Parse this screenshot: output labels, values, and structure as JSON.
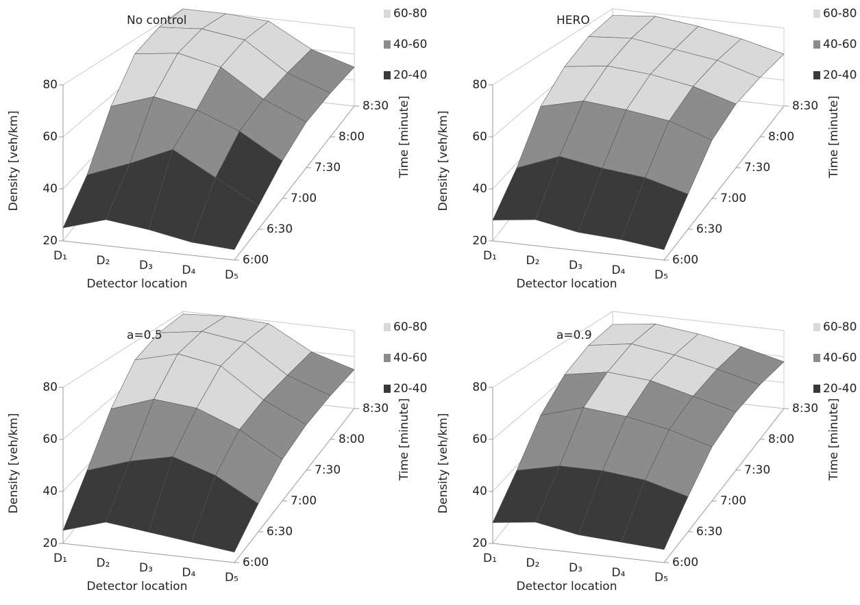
{
  "chart_data": [
    {
      "type": "surface",
      "title": "No control",
      "x_label": "Detector location",
      "y_label": "Time [minute]",
      "z_label": "Density [veh/km]",
      "categories": [
        "D₁",
        "D₂",
        "D₃",
        "D₄",
        "D₅"
      ],
      "times": [
        "6:00",
        "6:30",
        "7:00",
        "7:30",
        "8:00",
        "8:30"
      ],
      "zlim": [
        20,
        80
      ],
      "zticks": [
        20,
        40,
        60,
        80
      ],
      "bands": [
        {
          "label": "60-80",
          "from": 60,
          "to": 80,
          "color": "#d9d9d9"
        },
        {
          "label": "40-60",
          "from": 40,
          "to": 60,
          "color": "#8c8c8c"
        },
        {
          "label": "20-40",
          "from": 20,
          "to": 40,
          "color": "#3a3a3a"
        }
      ],
      "z": [
        [
          25,
          30,
          28,
          25,
          24
        ],
        [
          35,
          42,
          50,
          40,
          30
        ],
        [
          55,
          62,
          58,
          50,
          38
        ],
        [
          72,
          75,
          70,
          55,
          45
        ],
        [
          78,
          80,
          76,
          58,
          48
        ],
        [
          80,
          80,
          78,
          60,
          50
        ]
      ]
    },
    {
      "type": "surface",
      "title": "HERO",
      "x_label": "Detector location",
      "y_label": "Time [minute]",
      "z_label": "Density [veh/km]",
      "categories": [
        "D₁",
        "D₂",
        "D₃",
        "D₄",
        "D₅"
      ],
      "times": [
        "6:00",
        "6:30",
        "7:00",
        "7:30",
        "8:00",
        "8:30"
      ],
      "zlim": [
        20,
        80
      ],
      "zticks": [
        20,
        40,
        60,
        80
      ],
      "bands": [
        {
          "label": "60-80",
          "from": 60,
          "to": 80,
          "color": "#d9d9d9"
        },
        {
          "label": "40-60",
          "from": 40,
          "to": 60,
          "color": "#8c8c8c"
        },
        {
          "label": "20-40",
          "from": 20,
          "to": 40,
          "color": "#3a3a3a"
        }
      ],
      "z": [
        [
          28,
          30,
          27,
          26,
          24
        ],
        [
          38,
          45,
          42,
          40,
          35
        ],
        [
          55,
          60,
          58,
          55,
          48
        ],
        [
          65,
          68,
          66,
          62,
          55
        ],
        [
          72,
          74,
          70,
          66,
          58
        ],
        [
          75,
          78,
          74,
          68,
          60
        ]
      ]
    },
    {
      "type": "surface",
      "title": "a=0.5",
      "x_label": "Detector location",
      "y_label": "Time [minute]",
      "z_label": "Density [veh/km]",
      "categories": [
        "D₁",
        "D₂",
        "D₃",
        "D₄",
        "D₅"
      ],
      "times": [
        "6:00",
        "6:30",
        "7:00",
        "7:30",
        "8:00",
        "8:30"
      ],
      "zlim": [
        20,
        80
      ],
      "zticks": [
        20,
        40,
        60,
        80
      ],
      "bands": [
        {
          "label": "60-80",
          "from": 60,
          "to": 80,
          "color": "#d9d9d9"
        },
        {
          "label": "40-60",
          "from": 40,
          "to": 60,
          "color": "#8c8c8c"
        },
        {
          "label": "20-40",
          "from": 20,
          "to": 40,
          "color": "#3a3a3a"
        }
      ],
      "z": [
        [
          25,
          30,
          28,
          26,
          24
        ],
        [
          38,
          44,
          48,
          42,
          32
        ],
        [
          55,
          62,
          60,
          52,
          40
        ],
        [
          70,
          76,
          72,
          56,
          45
        ],
        [
          76,
          80,
          76,
          58,
          48
        ],
        [
          78,
          80,
          78,
          60,
          50
        ]
      ]
    },
    {
      "type": "surface",
      "title": "a=0.9",
      "x_label": "Detector location",
      "y_label": "Time [minute]",
      "z_label": "Density [veh/km]",
      "categories": [
        "D₁",
        "D₂",
        "D₃",
        "D₄",
        "D₅"
      ],
      "times": [
        "6:00",
        "6:30",
        "7:00",
        "7:30",
        "8:00",
        "8:30"
      ],
      "zlim": [
        20,
        80
      ],
      "zticks": [
        20,
        40,
        60,
        80
      ],
      "bands": [
        {
          "label": "60-80",
          "from": 60,
          "to": 80,
          "color": "#d9d9d9"
        },
        {
          "label": "40-60",
          "from": 40,
          "to": 60,
          "color": "#8c8c8c"
        },
        {
          "label": "20-40",
          "from": 20,
          "to": 40,
          "color": "#3a3a3a"
        }
      ],
      "z": [
        [
          28,
          30,
          27,
          26,
          25
        ],
        [
          38,
          42,
          42,
          40,
          35
        ],
        [
          52,
          58,
          56,
          52,
          46
        ],
        [
          62,
          66,
          64,
          58,
          52
        ],
        [
          68,
          72,
          68,
          62,
          55
        ],
        [
          70,
          74,
          70,
          64,
          56
        ]
      ]
    }
  ]
}
